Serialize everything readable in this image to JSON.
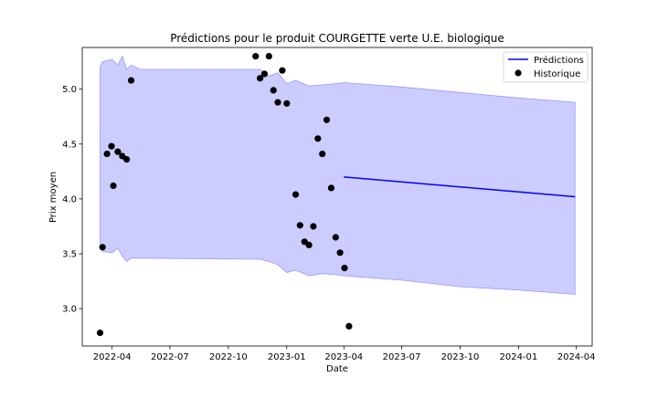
{
  "chart_data": {
    "type": "line",
    "title": "Prédictions pour le produit COURGETTE verte U.E. biologique",
    "xlabel": "Date",
    "ylabel": "Prix moyen",
    "xlim": [
      "2022-02-13",
      "2024-04-26"
    ],
    "ylim": [
      2.66,
      5.38
    ],
    "x_ticks": [
      "2022-04",
      "2022-07",
      "2022-10",
      "2023-01",
      "2023-04",
      "2023-07",
      "2023-10",
      "2024-01",
      "2024-04"
    ],
    "y_ticks": [
      "3.0",
      "3.5",
      "4.0",
      "4.5",
      "5.0"
    ],
    "grid": false,
    "legend_position": "top-right",
    "legend": [
      {
        "label": "Prédictions",
        "marker": "line",
        "color": "#0000ff"
      },
      {
        "label": "Historique",
        "marker": "dot",
        "color": "#000000"
      }
    ],
    "colors": {
      "prediction": "#0000ff",
      "band": "#9999ff",
      "historique": "#000000"
    },
    "series": [
      {
        "name": "Prédictions",
        "kind": "line",
        "x": [
          "2023-04-01",
          "2024-03-30"
        ],
        "y": [
          4.2,
          4.02
        ]
      },
      {
        "name": "Historique",
        "kind": "scatter",
        "points": [
          {
            "x": "2022-03-13",
            "y": 2.78
          },
          {
            "x": "2022-03-17",
            "y": 3.56
          },
          {
            "x": "2022-03-24",
            "y": 4.41
          },
          {
            "x": "2022-03-31",
            "y": 4.48
          },
          {
            "x": "2022-04-03",
            "y": 4.12
          },
          {
            "x": "2022-04-10",
            "y": 4.43
          },
          {
            "x": "2022-04-17",
            "y": 4.39
          },
          {
            "x": "2022-04-24",
            "y": 4.36
          },
          {
            "x": "2022-05-01",
            "y": 5.08
          },
          {
            "x": "2022-11-13",
            "y": 5.3
          },
          {
            "x": "2022-11-20",
            "y": 5.1
          },
          {
            "x": "2022-11-27",
            "y": 5.14
          },
          {
            "x": "2022-12-04",
            "y": 5.3
          },
          {
            "x": "2022-12-11",
            "y": 4.99
          },
          {
            "x": "2022-12-18",
            "y": 4.88
          },
          {
            "x": "2022-12-25",
            "y": 5.17
          },
          {
            "x": "2023-01-01",
            "y": 4.87
          },
          {
            "x": "2023-01-15",
            "y": 4.04
          },
          {
            "x": "2023-01-22",
            "y": 3.76
          },
          {
            "x": "2023-01-29",
            "y": 3.61
          },
          {
            "x": "2023-02-05",
            "y": 3.58
          },
          {
            "x": "2023-02-12",
            "y": 3.75
          },
          {
            "x": "2023-02-19",
            "y": 4.55
          },
          {
            "x": "2023-02-26",
            "y": 4.41
          },
          {
            "x": "2023-03-05",
            "y": 4.72
          },
          {
            "x": "2023-03-12",
            "y": 4.1
          },
          {
            "x": "2023-03-19",
            "y": 3.65
          },
          {
            "x": "2023-03-26",
            "y": 3.51
          },
          {
            "x": "2023-04-02",
            "y": 3.37
          },
          {
            "x": "2023-04-09",
            "y": 2.84
          }
        ]
      },
      {
        "name": "Intervalle de prédiction",
        "kind": "band",
        "x": [
          "2022-03-13",
          "2022-03-17",
          "2022-04-01",
          "2022-04-10",
          "2022-04-17",
          "2022-04-24",
          "2022-05-01",
          "2022-05-15",
          "2022-11-20",
          "2022-12-04",
          "2022-12-18",
          "2023-01-01",
          "2023-01-15",
          "2023-02-05",
          "2023-02-26",
          "2023-03-19",
          "2023-04-01",
          "2023-07-01",
          "2023-10-01",
          "2024-01-01",
          "2024-03-30"
        ],
        "upper": [
          5.2,
          5.25,
          5.27,
          5.22,
          5.3,
          5.18,
          5.22,
          5.18,
          5.18,
          5.12,
          5.15,
          5.05,
          5.08,
          5.03,
          5.04,
          5.05,
          5.06,
          5.02,
          4.97,
          4.92,
          4.88
        ],
        "lower": [
          3.56,
          3.52,
          3.51,
          3.55,
          3.48,
          3.43,
          3.46,
          3.46,
          3.45,
          3.43,
          3.4,
          3.33,
          3.35,
          3.3,
          3.32,
          3.31,
          3.3,
          3.26,
          3.2,
          3.17,
          3.13
        ]
      }
    ]
  }
}
